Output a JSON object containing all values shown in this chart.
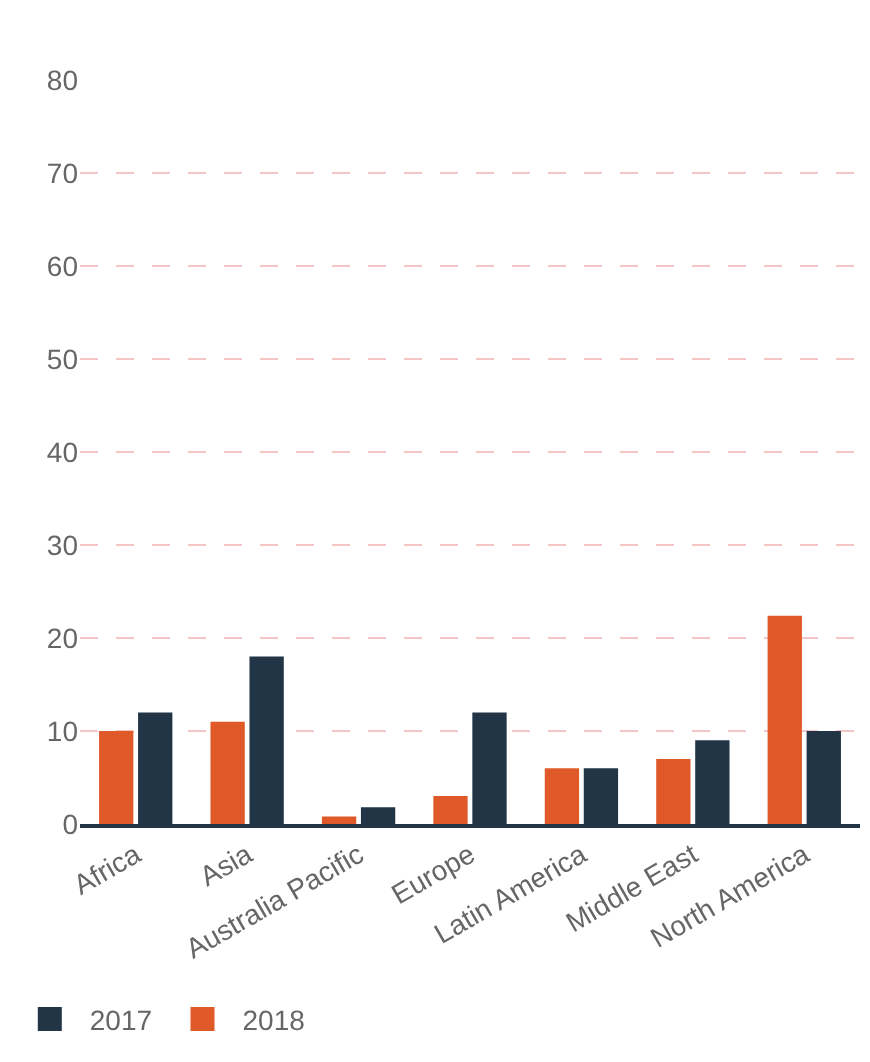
{
  "chart_data": {
    "type": "bar",
    "categories": [
      "Africa",
      "Asia",
      "Australia Pacific",
      "Europe",
      "Latin America",
      "Middle East",
      "North America"
    ],
    "series": [
      {
        "name": "2018",
        "color": "#e05a29",
        "values": [
          10,
          11,
          0.8,
          3,
          6,
          7,
          22.4
        ]
      },
      {
        "name": "2017",
        "color": "#213547",
        "values": [
          12,
          18,
          1.8,
          12,
          6,
          9,
          10
        ]
      }
    ],
    "ylim": [
      0,
      80
    ],
    "yticks": [
      0,
      10,
      20,
      30,
      40,
      50,
      60,
      70,
      80
    ],
    "grid": "y",
    "legend": "bottom left"
  }
}
